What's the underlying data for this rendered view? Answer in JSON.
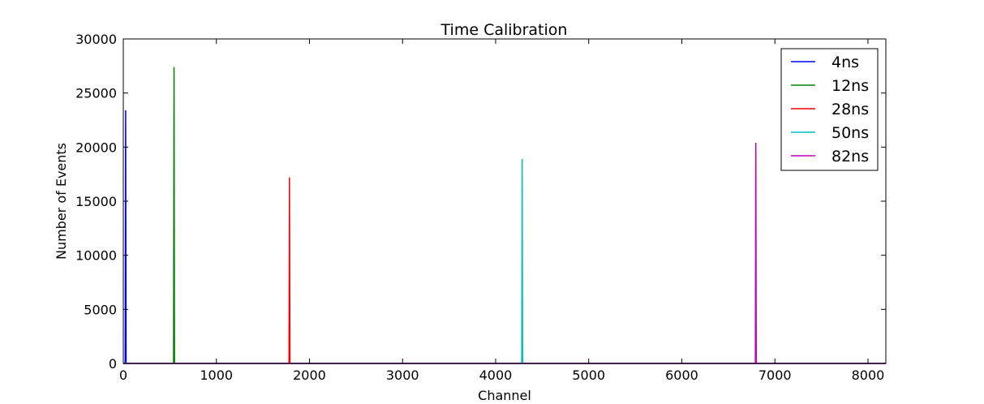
{
  "chart_data": {
    "type": "line",
    "title": "Time Calibration",
    "xlabel": "Channel",
    "ylabel": "Number of Events",
    "xlim": [
      0,
      8192
    ],
    "ylim": [
      0,
      30000
    ],
    "x_ticks": [
      0,
      1000,
      2000,
      3000,
      4000,
      5000,
      6000,
      7000,
      8000
    ],
    "y_ticks": [
      0,
      5000,
      10000,
      15000,
      20000,
      25000,
      30000
    ],
    "grid": false,
    "legend_position": "top-right",
    "series": [
      {
        "name": "4ns",
        "color": "#0000ff",
        "x": [
          0,
          20,
          25,
          30,
          35,
          8192
        ],
        "y": [
          0,
          0,
          23400,
          0,
          0,
          0
        ]
      },
      {
        "name": "12ns",
        "color": "#008000",
        "x": [
          0,
          540,
          545,
          550,
          555,
          8192
        ],
        "y": [
          0,
          0,
          27400,
          0,
          0,
          0
        ]
      },
      {
        "name": "28ns",
        "color": "#ff0000",
        "x": [
          0,
          1780,
          1785,
          1790,
          1795,
          8192
        ],
        "y": [
          0,
          0,
          17200,
          0,
          0,
          0
        ]
      },
      {
        "name": "50ns",
        "color": "#00bfbf",
        "x": [
          0,
          4280,
          4285,
          4290,
          4295,
          8192
        ],
        "y": [
          0,
          0,
          18900,
          0,
          0,
          0
        ]
      },
      {
        "name": "82ns",
        "color": "#bf00bf",
        "x": [
          0,
          6790,
          6795,
          6800,
          6805,
          8192
        ],
        "y": [
          0,
          0,
          20400,
          0,
          0,
          0
        ]
      }
    ]
  }
}
